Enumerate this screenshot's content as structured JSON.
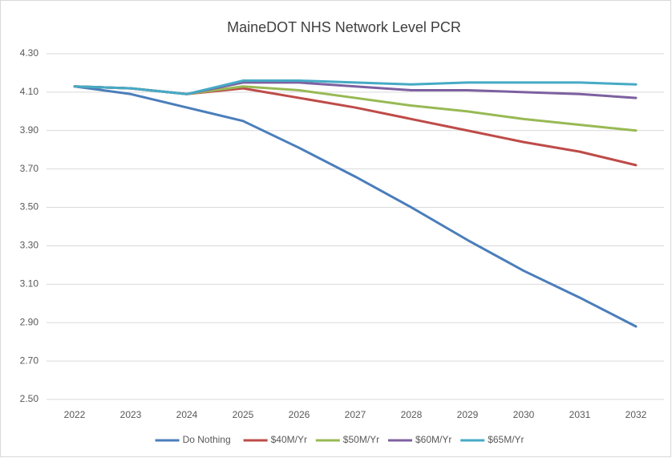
{
  "chart_data": {
    "type": "line",
    "title": "MaineDOT NHS Network Level PCR",
    "categories": [
      "2022",
      "2023",
      "2024",
      "2025",
      "2026",
      "2027",
      "2028",
      "2029",
      "2030",
      "2031",
      "2032"
    ],
    "series": [
      {
        "name": "Do Nothing",
        "color": "#4a7ebb",
        "values": [
          4.13,
          4.09,
          4.02,
          3.95,
          3.81,
          3.66,
          3.5,
          3.33,
          3.17,
          3.03,
          2.88
        ]
      },
      {
        "name": "$40M/Yr",
        "color": "#be4b48",
        "values": [
          4.13,
          4.12,
          4.09,
          4.12,
          4.07,
          4.02,
          3.96,
          3.9,
          3.84,
          3.79,
          3.72
        ]
      },
      {
        "name": "$50M/Yr",
        "color": "#98b954",
        "values": [
          4.13,
          4.12,
          4.09,
          4.13,
          4.11,
          4.07,
          4.03,
          4.0,
          3.96,
          3.93,
          3.9
        ]
      },
      {
        "name": "$60M/Yr",
        "color": "#7d60a0",
        "values": [
          4.13,
          4.12,
          4.09,
          4.15,
          4.15,
          4.13,
          4.11,
          4.11,
          4.1,
          4.09,
          4.07
        ]
      },
      {
        "name": "$65M/Yr",
        "color": "#46aac5",
        "values": [
          4.13,
          4.12,
          4.09,
          4.16,
          4.16,
          4.15,
          4.14,
          4.15,
          4.15,
          4.15,
          4.14
        ]
      }
    ],
    "ylim": [
      2.5,
      4.3
    ],
    "yticks": [
      {
        "value": 2.5,
        "label": "2.50"
      },
      {
        "value": 2.7,
        "label": "2.70"
      },
      {
        "value": 2.9,
        "label": "2.90"
      },
      {
        "value": 3.1,
        "label": "3.10"
      },
      {
        "value": 3.3,
        "label": "3.30"
      },
      {
        "value": 3.5,
        "label": "3.50"
      },
      {
        "value": 3.7,
        "label": "3.70"
      },
      {
        "value": 3.9,
        "label": "3.90"
      },
      {
        "value": 4.1,
        "label": "4.10"
      },
      {
        "value": 4.3,
        "label": "4.30"
      }
    ],
    "grid": true,
    "legend": "bottom"
  }
}
